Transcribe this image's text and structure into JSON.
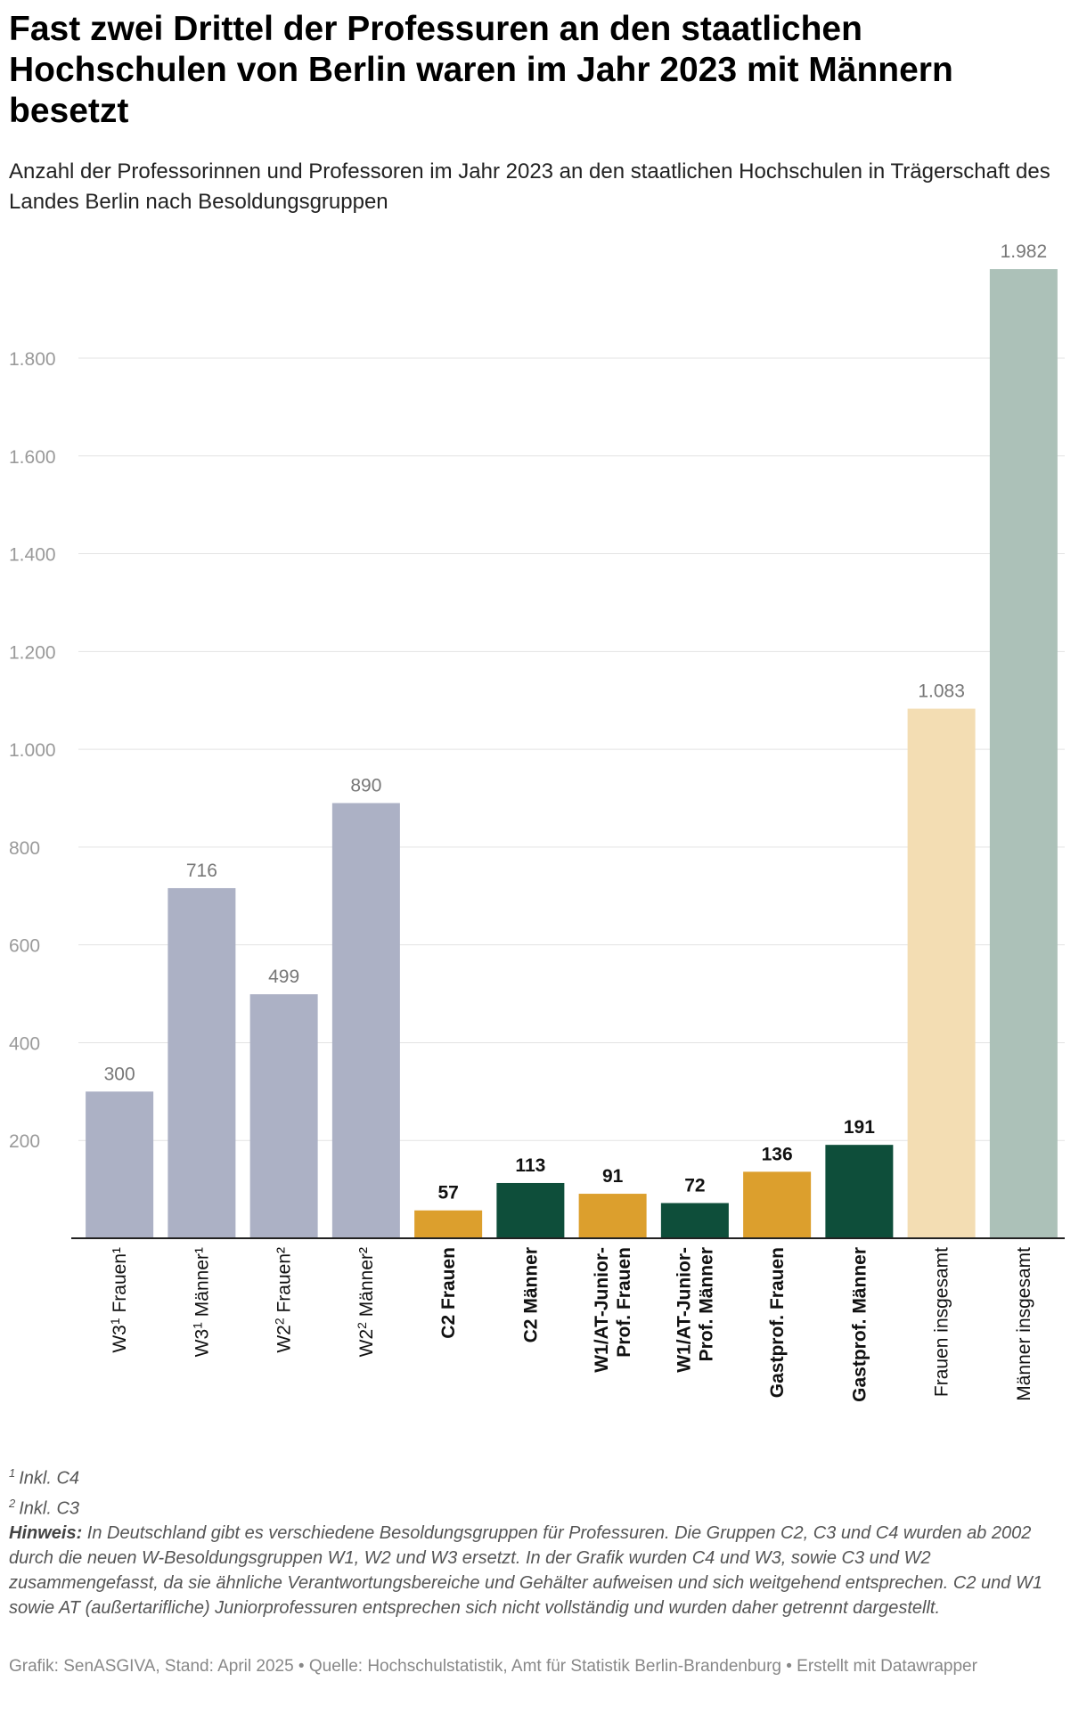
{
  "header": {
    "title": "Fast zwei Drittel der Professuren an den staatlichen Hochschulen von Berlin waren im Jahr 2023 mit Männern besetzt",
    "subtitle": "Anzahl der Professorinnen und Professoren im Jahr 2023 an den staatlichen Hochschulen in Trägerschaft des Landes Berlin nach Besoldungsgruppen"
  },
  "chart_data": {
    "type": "bar",
    "title": "Fast zwei Drittel der Professuren an den staatlichen Hochschulen von Berlin waren im Jahr 2023 mit Männern besetzt",
    "xlabel": "",
    "ylabel": "",
    "ylim": [
      0,
      2000
    ],
    "grid": true,
    "yticks": [
      200,
      400,
      600,
      800,
      1000,
      1200,
      1400,
      1600,
      1800
    ],
    "ytick_labels": [
      "200",
      "400",
      "600",
      "800",
      "1.000",
      "1.200",
      "1.400",
      "1.600",
      "1.800"
    ],
    "bars": [
      {
        "label": "W3¹ Frauen¹",
        "base": "W3",
        "sup": "1",
        "rest": " Frauen¹",
        "value": 300,
        "value_label": "300",
        "color": "#acb1c5",
        "bold": false,
        "label_color": "#777777"
      },
      {
        "label": "W3¹ Männer¹",
        "base": "W3",
        "sup": "1",
        "rest": " Männer¹",
        "value": 716,
        "value_label": "716",
        "color": "#acb1c5",
        "bold": false,
        "label_color": "#777777"
      },
      {
        "label": "W2² Frauen²",
        "base": "W2",
        "sup": "2",
        "rest": " Frauen²",
        "value": 499,
        "value_label": "499",
        "color": "#acb1c5",
        "bold": false,
        "label_color": "#777777"
      },
      {
        "label": "W2² Männer²",
        "base": "W2",
        "sup": "2",
        "rest": " Männer²",
        "value": 890,
        "value_label": "890",
        "color": "#acb1c5",
        "bold": false,
        "label_color": "#777777"
      },
      {
        "label": "C2 Frauen",
        "base": "C2 Frauen",
        "sup": "",
        "rest": "",
        "value": 57,
        "value_label": "57",
        "color": "#dc9f2d",
        "bold": true,
        "label_color": "#111111"
      },
      {
        "label": "C2 Männer",
        "base": "C2 Männer",
        "sup": "",
        "rest": "",
        "value": 113,
        "value_label": "113",
        "color": "#0e4e3a",
        "bold": true,
        "label_color": "#111111"
      },
      {
        "label": "W1/AT-Junior-Prof. Frauen",
        "lines": [
          "W1/AT-Junior-",
          "Prof. Frauen"
        ],
        "value": 91,
        "value_label": "91",
        "color": "#dc9f2d",
        "bold": true,
        "label_color": "#111111"
      },
      {
        "label": "W1/AT-Junior-Prof. Männer",
        "lines": [
          "W1/AT-Junior-",
          "Prof. Männer"
        ],
        "value": 72,
        "value_label": "72",
        "color": "#0e4e3a",
        "bold": true,
        "label_color": "#111111"
      },
      {
        "label": "Gastprof. Frauen",
        "base": "Gastprof. Frauen",
        "sup": "",
        "rest": "",
        "value": 136,
        "value_label": "136",
        "color": "#dc9f2d",
        "bold": true,
        "label_color": "#111111"
      },
      {
        "label": "Gastprof. Männer",
        "base": "Gastprof. Männer",
        "sup": "",
        "rest": "",
        "value": 191,
        "value_label": "191",
        "color": "#0e4e3a",
        "bold": true,
        "label_color": "#111111"
      },
      {
        "label": "Frauen insgesamt",
        "base": "Frauen insgesamt",
        "sup": "",
        "rest": "",
        "value": 1083,
        "value_label": "1.083",
        "color": "#f3ddb3",
        "bold": false,
        "label_color": "#777777"
      },
      {
        "label": "Männer insgesamt",
        "base": "Männer insgesamt",
        "sup": "",
        "rest": "",
        "value": 1982,
        "value_label": "1.982",
        "color": "#acc1b8",
        "bold": false,
        "label_color": "#777777"
      }
    ]
  },
  "notes": {
    "fn1_mark": "1",
    "fn1_text": "Inkl. C4",
    "fn2_mark": "2",
    "fn2_text": "Inkl. C3",
    "hint_label": "Hinweis:",
    "hint_text": " In Deutschland gibt es verschiedene Besoldungsgruppen für Professuren. Die Gruppen C2, C3 und C4 wurden ab 2002 durch die neuen W-Besoldungsgruppen W1, W2 und W3 ersetzt. In der Grafik wurden C4 und W3, sowie C3 und W2 zusammengefasst, da sie ähnliche Verantwortungsbereiche und Gehälter aufweisen und sich weitgehend entsprechen. C2 und W1 sowie AT (außertarifliche) Juniorprofessuren entsprechen sich nicht vollständig und wurden daher getrennt dargestellt."
  },
  "footer": {
    "text": "Grafik: SenASGIVA, Stand: April 2025 • Quelle: Hochschulstatistik, Amt für Statistik Berlin-Brandenburg • Erstellt mit Datawrapper"
  }
}
